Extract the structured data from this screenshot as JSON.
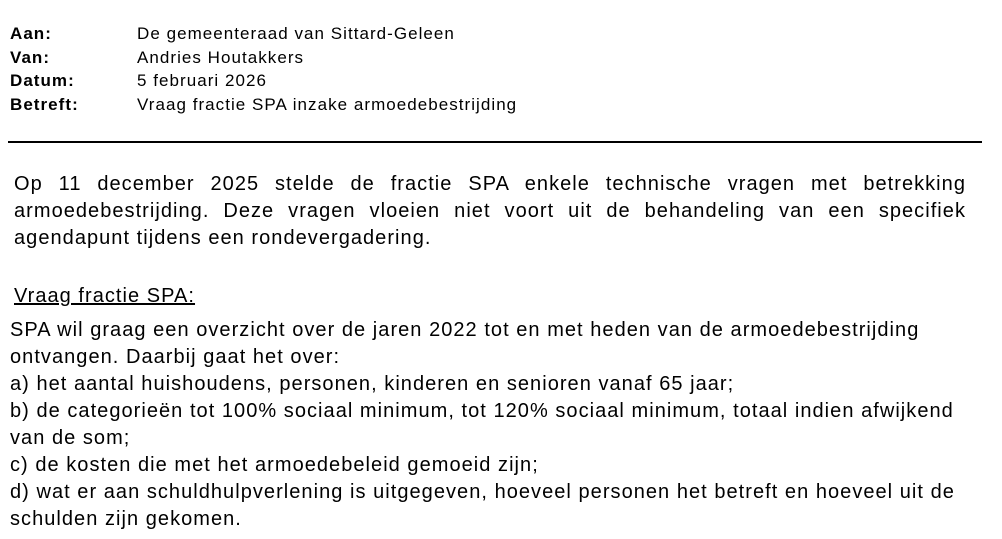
{
  "document": {
    "background_color": "#ffffff",
    "text_color": "#000000",
    "header_fields": [
      {
        "label": "Aan:",
        "value": "De gemeenteraad van Sittard-Geleen"
      },
      {
        "label": "Van:",
        "value": "Andries Houtakkers"
      },
      {
        "label": "Datum:",
        "value": "5 februari 2026"
      },
      {
        "label": "Betreft:",
        "value": "Vraag fractie SPA inzake armoedebestrijding"
      }
    ],
    "intro_paragraph": "Op 11 december 2025 stelde de fractie SPA enkele technische vragen met betrekking armoedebestrijding. Deze vragen vloeien niet voort uit de behandeling van een specifiek agendapunt tijdens een rondevergadering.",
    "question_heading": "Vraag fractie SPA:",
    "question_intro": "SPA wil graag een overzicht over de jaren 2022 tot en met heden van de armoedebestrijding ontvangen. Daarbij gaat het over:",
    "question_items": [
      "a) het aantal huishoudens, personen, kinderen en senioren vanaf 65 jaar;",
      "b) de categorieën tot 100% sociaal minimum, tot 120% sociaal minimum, totaal indien afwijkend van de som;",
      "c) de kosten die met het armoedebeleid gemoeid zijn;",
      "d) wat er aan schuldhulpverlening is uitgegeven, hoeveel personen het betreft en hoeveel uit de schulden zijn gekomen."
    ]
  }
}
